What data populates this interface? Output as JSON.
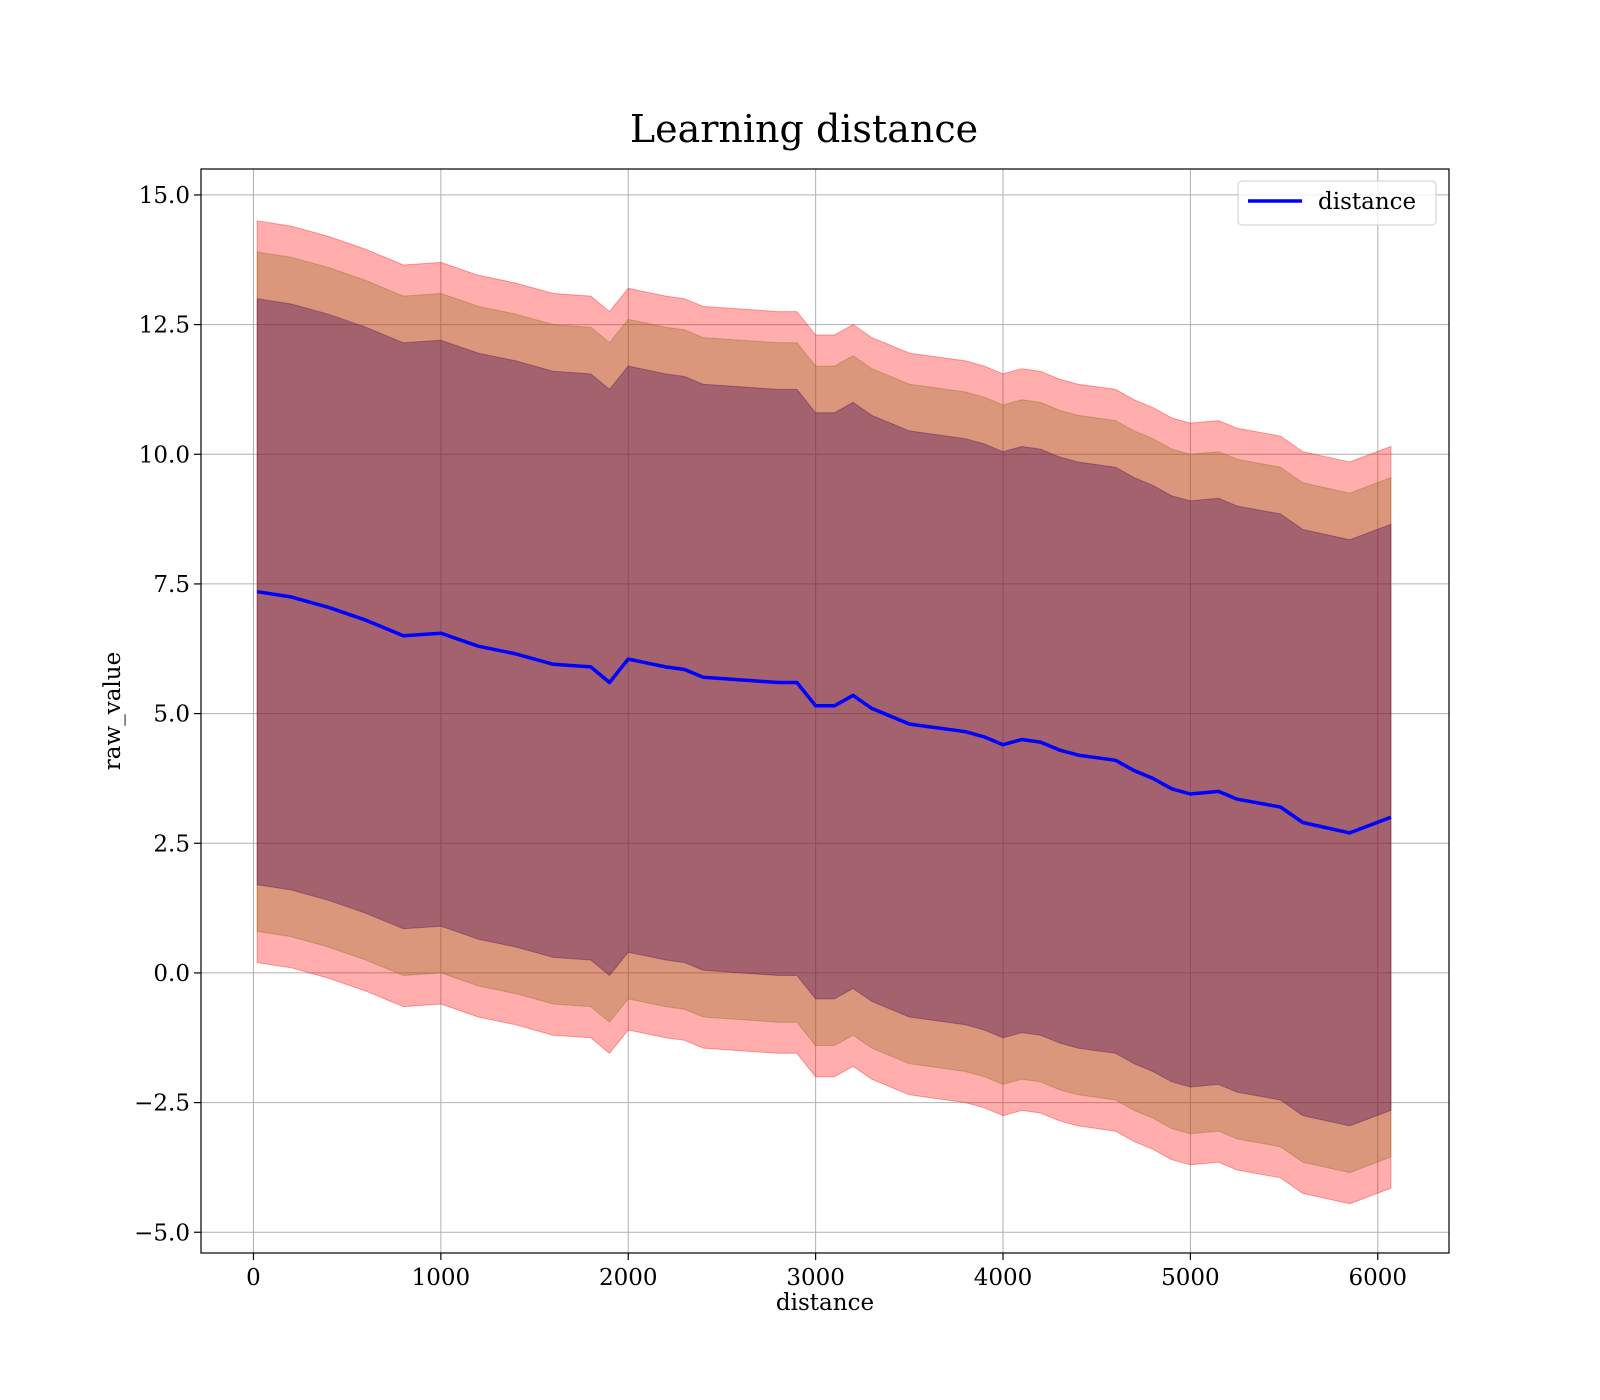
{
  "chart_data": {
    "type": "line",
    "title": "Learning distance",
    "xlabel": "distance",
    "ylabel": "raw_value",
    "xlim": [
      -280,
      6380
    ],
    "ylim": [
      -5.4,
      15.5
    ],
    "xticks": [
      0,
      1000,
      2000,
      3000,
      4000,
      5000,
      6000
    ],
    "yticks": [
      -5.0,
      -2.5,
      0.0,
      2.5,
      5.0,
      7.5,
      10.0,
      12.5,
      15.0
    ],
    "xtick_labels": [
      "0",
      "1000",
      "2000",
      "3000",
      "4000",
      "5000",
      "6000"
    ],
    "ytick_labels": [
      "−5.0",
      "−2.5",
      "0.0",
      "2.5",
      "5.0",
      "7.5",
      "10.0",
      "12.5",
      "15.0"
    ],
    "grid": true,
    "legend_position": "top-right",
    "colors": {
      "line": "#0000ff",
      "band_outer": "#ff0000",
      "band_middle": "#8b6914",
      "band_inner": "#4b0a5a",
      "grid": "#b0b0b0"
    },
    "x": [
      20,
      200,
      400,
      600,
      800,
      1000,
      1200,
      1400,
      1600,
      1800,
      1900,
      2000,
      2200,
      2300,
      2400,
      2600,
      2800,
      2900,
      3000,
      3100,
      3200,
      3300,
      3400,
      3500,
      3600,
      3800,
      3900,
      4000,
      4100,
      4200,
      4300,
      4400,
      4500,
      4600,
      4700,
      4800,
      4900,
      5000,
      5150,
      5250,
      5480,
      5600,
      5850,
      6070
    ],
    "series": [
      {
        "name": "distance",
        "values": [
          7.35,
          7.25,
          7.05,
          6.8,
          6.5,
          6.55,
          6.3,
          6.15,
          5.95,
          5.9,
          5.6,
          6.05,
          5.9,
          5.85,
          5.7,
          5.65,
          5.6,
          5.6,
          5.15,
          5.15,
          5.35,
          5.1,
          4.95,
          4.8,
          4.75,
          4.65,
          4.55,
          4.4,
          4.5,
          4.45,
          4.3,
          4.2,
          4.15,
          4.1,
          3.9,
          3.75,
          3.55,
          3.45,
          3.5,
          3.35,
          3.2,
          2.9,
          2.7,
          3.0
        ]
      }
    ],
    "bands": [
      {
        "sigma": 1,
        "upper": [
          13.0,
          12.9,
          12.7,
          12.45,
          12.15,
          12.2,
          11.95,
          11.8,
          11.6,
          11.55,
          11.25,
          11.7,
          11.55,
          11.5,
          11.35,
          11.3,
          11.25,
          11.25,
          10.8,
          10.8,
          11.0,
          10.75,
          10.6,
          10.45,
          10.4,
          10.3,
          10.2,
          10.05,
          10.15,
          10.1,
          9.95,
          9.85,
          9.8,
          9.75,
          9.55,
          9.4,
          9.2,
          9.1,
          9.15,
          9.0,
          8.85,
          8.55,
          8.35,
          8.65
        ],
        "lower": [
          1.7,
          1.6,
          1.4,
          1.15,
          0.85,
          0.9,
          0.65,
          0.5,
          0.3,
          0.25,
          -0.05,
          0.4,
          0.25,
          0.2,
          0.05,
          0.0,
          -0.05,
          -0.05,
          -0.5,
          -0.5,
          -0.3,
          -0.55,
          -0.7,
          -0.85,
          -0.9,
          -1.0,
          -1.1,
          -1.25,
          -1.15,
          -1.2,
          -1.35,
          -1.45,
          -1.5,
          -1.55,
          -1.75,
          -1.9,
          -2.1,
          -2.2,
          -2.15,
          -2.3,
          -2.45,
          -2.75,
          -2.95,
          -2.65
        ]
      },
      {
        "sigma": 2,
        "upper": [
          13.9,
          13.8,
          13.6,
          13.35,
          13.05,
          13.1,
          12.85,
          12.7,
          12.5,
          12.45,
          12.15,
          12.6,
          12.45,
          12.4,
          12.25,
          12.2,
          12.15,
          12.15,
          11.7,
          11.7,
          11.9,
          11.65,
          11.5,
          11.35,
          11.3,
          11.2,
          11.1,
          10.95,
          11.05,
          11.0,
          10.85,
          10.75,
          10.7,
          10.65,
          10.45,
          10.3,
          10.1,
          10.0,
          10.05,
          9.9,
          9.75,
          9.45,
          9.25,
          9.55
        ],
        "lower": [
          0.8,
          0.7,
          0.5,
          0.25,
          -0.05,
          0.0,
          -0.25,
          -0.4,
          -0.6,
          -0.65,
          -0.95,
          -0.5,
          -0.65,
          -0.7,
          -0.85,
          -0.9,
          -0.95,
          -0.95,
          -1.4,
          -1.4,
          -1.2,
          -1.45,
          -1.6,
          -1.75,
          -1.8,
          -1.9,
          -2.0,
          -2.15,
          -2.05,
          -2.1,
          -2.25,
          -2.35,
          -2.4,
          -2.45,
          -2.65,
          -2.8,
          -3.0,
          -3.1,
          -3.05,
          -3.2,
          -3.35,
          -3.65,
          -3.85,
          -3.55
        ]
      },
      {
        "sigma": 3,
        "upper": [
          14.5,
          14.4,
          14.2,
          13.95,
          13.65,
          13.7,
          13.45,
          13.3,
          13.1,
          13.05,
          12.75,
          13.2,
          13.05,
          13.0,
          12.85,
          12.8,
          12.75,
          12.75,
          12.3,
          12.3,
          12.5,
          12.25,
          12.1,
          11.95,
          11.9,
          11.8,
          11.7,
          11.55,
          11.65,
          11.6,
          11.45,
          11.35,
          11.3,
          11.25,
          11.05,
          10.9,
          10.7,
          10.6,
          10.65,
          10.5,
          10.35,
          10.05,
          9.85,
          10.15
        ],
        "lower": [
          0.2,
          0.1,
          -0.1,
          -0.35,
          -0.65,
          -0.6,
          -0.85,
          -1.0,
          -1.2,
          -1.25,
          -1.55,
          -1.1,
          -1.25,
          -1.3,
          -1.45,
          -1.5,
          -1.55,
          -1.55,
          -2.0,
          -2.0,
          -1.8,
          -2.05,
          -2.2,
          -2.35,
          -2.4,
          -2.5,
          -2.6,
          -2.75,
          -2.65,
          -2.7,
          -2.85,
          -2.95,
          -3.0,
          -3.05,
          -3.25,
          -3.4,
          -3.6,
          -3.7,
          -3.65,
          -3.8,
          -3.95,
          -4.25,
          -4.45,
          -4.15
        ]
      }
    ]
  }
}
